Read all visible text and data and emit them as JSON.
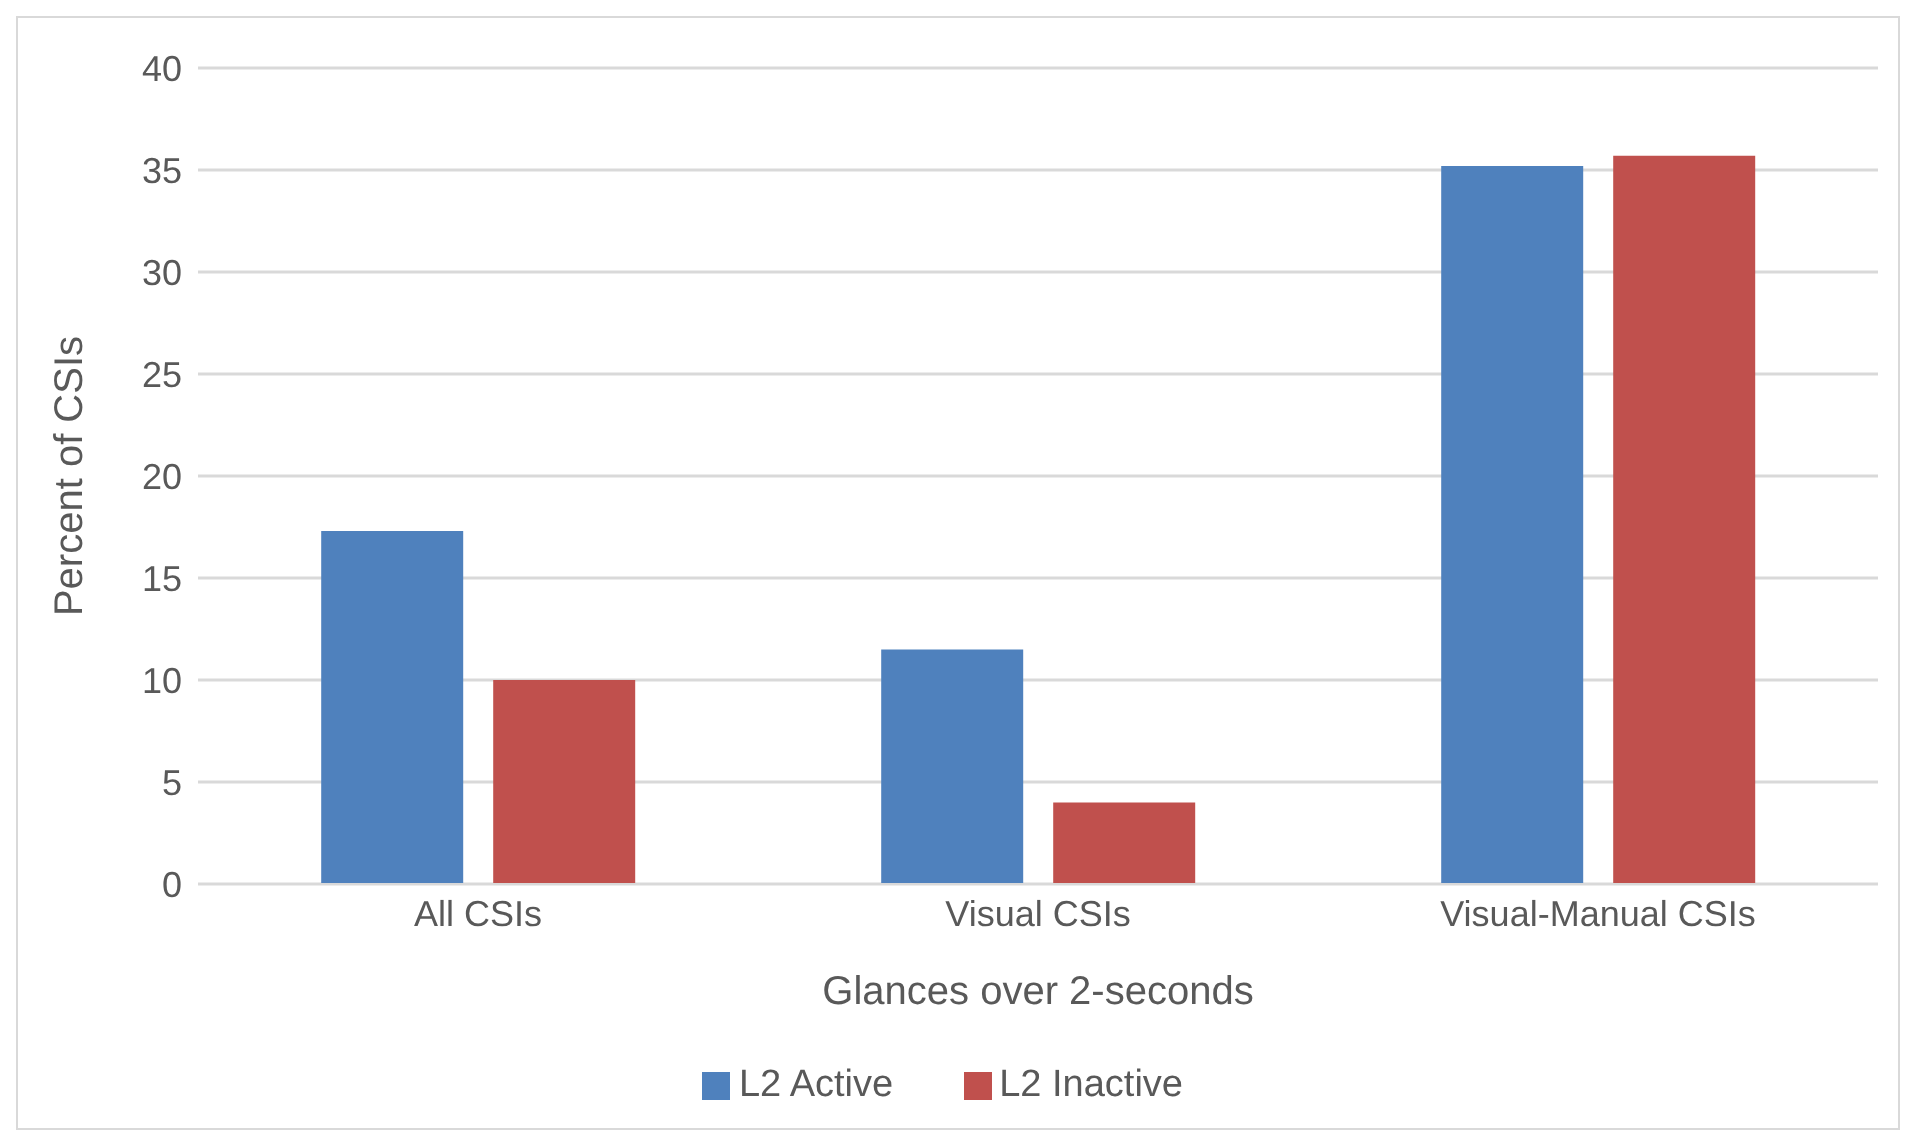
{
  "chart_data": {
    "type": "bar",
    "xlabel": "Glances over 2-seconds",
    "ylabel": "Percent of CSIs",
    "categories": [
      "All CSIs",
      "Visual CSIs",
      "Visual-Manual CSIs"
    ],
    "series": [
      {
        "name": "L2 Active",
        "color": "#4f81bd",
        "values": [
          17.3,
          11.5,
          35.2
        ]
      },
      {
        "name": "L2 Inactive",
        "color": "#c0504d",
        "values": [
          10.0,
          4.0,
          35.7
        ]
      }
    ],
    "ylim": [
      0,
      40
    ],
    "yticks": [
      0,
      5,
      10,
      15,
      20,
      25,
      30,
      35,
      40
    ],
    "grid": "y",
    "legend": "bottom"
  }
}
